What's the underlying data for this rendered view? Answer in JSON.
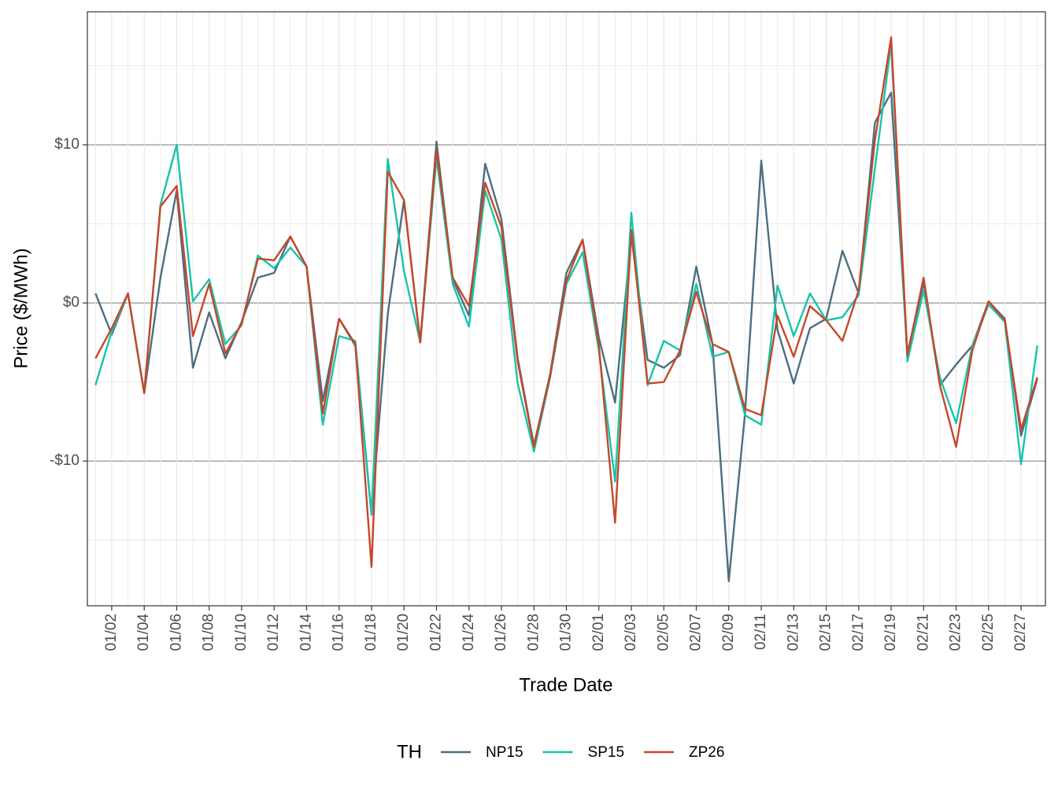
{
  "chart_data": {
    "type": "line",
    "x_label": "Trade Date",
    "y_label": "Price ($/MWh)",
    "legend_title": "TH",
    "legend_position": "bottom",
    "grid": true,
    "categories": [
      null,
      "01/02",
      null,
      "01/04",
      null,
      "01/06",
      null,
      "01/08",
      null,
      "01/10",
      null,
      "01/12",
      null,
      "01/14",
      null,
      "01/16",
      null,
      "01/18",
      null,
      "01/20",
      null,
      "01/22",
      null,
      "01/24",
      null,
      "01/26",
      null,
      "01/28",
      null,
      "01/30",
      null,
      "02/01",
      null,
      "02/03",
      null,
      "02/05",
      null,
      "02/07",
      null,
      "02/09",
      null,
      "02/11",
      null,
      "02/13",
      null,
      "02/15",
      null,
      "02/17",
      null,
      "02/19",
      null,
      "02/21",
      null,
      "02/23",
      null,
      "02/25",
      null,
      "02/27",
      null
    ],
    "ylim": [
      -19.15,
      18.41
    ],
    "yticks": [
      {
        "value": -10,
        "label": "-$10"
      },
      {
        "value": 0,
        "label": "$0"
      },
      {
        "value": 10,
        "label": "$10"
      }
    ],
    "series": [
      {
        "name": "NP15",
        "color": "#4d6e80",
        "values": [
          0.6,
          -2.0,
          0.6,
          -5.7,
          1.6,
          7.1,
          -4.1,
          -0.6,
          -3.5,
          -1.2,
          1.6,
          1.9,
          4.2,
          2.3,
          -6.2,
          -1.0,
          -2.7,
          -13.4,
          -0.7,
          6.5,
          -2.5,
          10.2,
          1.5,
          -0.8,
          8.8,
          5.3,
          -3.5,
          -9.0,
          -4.5,
          1.9,
          4.0,
          -2.2,
          -6.3,
          4.2,
          -3.6,
          -4.1,
          -3.3,
          2.3,
          -2.6,
          -17.6,
          -7.0,
          9.0,
          -1.7,
          -5.1,
          -1.6,
          -1.0,
          3.3,
          0.6,
          11.4,
          13.3,
          -3.2,
          1.3,
          -5.2,
          -3.9,
          -2.7,
          0.1,
          -1.0,
          -8.4,
          -4.8
        ]
      },
      {
        "name": "SP15",
        "color": "#17c4aa",
        "values": [
          -5.2,
          -1.8,
          0.6,
          -5.7,
          6.2,
          10.0,
          0.1,
          1.5,
          -2.6,
          -1.4,
          3.0,
          2.2,
          3.5,
          2.3,
          -7.7,
          -2.1,
          -2.4,
          -13.4,
          9.1,
          2.0,
          -2.5,
          9.2,
          1.2,
          -1.5,
          7.1,
          4.0,
          -5.1,
          -9.4,
          -4.7,
          1.2,
          3.2,
          -3.0,
          -11.3,
          5.7,
          -5.2,
          -2.4,
          -3.0,
          1.2,
          -3.4,
          -3.1,
          -7.1,
          -7.7,
          1.1,
          -2.1,
          0.6,
          -1.1,
          -0.9,
          0.5,
          8.5,
          16.4,
          -3.7,
          0.8,
          -4.7,
          -7.6,
          -2.7,
          -0.1,
          -1.2,
          -10.2,
          -2.7
        ]
      },
      {
        "name": "ZP26",
        "color": "#c8462a",
        "values": [
          -3.5,
          -1.6,
          0.6,
          -5.7,
          6.1,
          7.4,
          -2.1,
          1.2,
          -3.2,
          -1.3,
          2.8,
          2.7,
          4.2,
          2.3,
          -7.0,
          -1.0,
          -2.6,
          -16.7,
          8.3,
          6.5,
          -2.5,
          9.7,
          1.6,
          -0.2,
          7.6,
          4.8,
          -3.7,
          -9.1,
          -4.6,
          1.4,
          4.0,
          -2.7,
          -13.9,
          4.6,
          -5.1,
          -5.0,
          -3.0,
          0.7,
          -2.6,
          -3.1,
          -6.7,
          -7.1,
          -0.8,
          -3.4,
          -0.2,
          -1.1,
          -2.4,
          0.8,
          10.3,
          16.8,
          -3.3,
          1.6,
          -5.2,
          -9.1,
          -3.0,
          0.1,
          -1.1,
          -8.0,
          -4.7
        ]
      }
    ]
  }
}
